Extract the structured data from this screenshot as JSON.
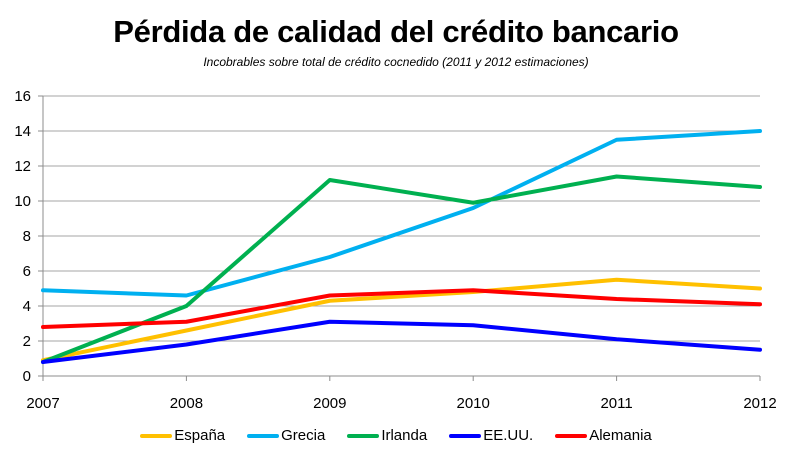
{
  "chart_data": {
    "type": "line",
    "title": "Pérdida de calidad del crédito bancario",
    "subtitle": "Incobrables sobre total de crédito cocnedido (2011 y 2012 estimaciones)",
    "xlabel": "",
    "ylabel": "",
    "x": [
      "2007",
      "2008",
      "2009",
      "2010",
      "2011",
      "2012"
    ],
    "ylim": [
      0,
      16
    ],
    "yticks": [
      0,
      2,
      4,
      6,
      8,
      10,
      12,
      14,
      16
    ],
    "grid": true,
    "legend_position": "bottom",
    "series": [
      {
        "name": "España",
        "color": "#FFC000",
        "values": [
          0.9,
          2.6,
          4.3,
          4.8,
          5.5,
          5.0
        ]
      },
      {
        "name": "Grecia",
        "color": "#00B0F0",
        "values": [
          4.9,
          4.6,
          6.8,
          9.6,
          13.5,
          14.0
        ]
      },
      {
        "name": "Irlanda",
        "color": "#00B050",
        "values": [
          0.8,
          4.0,
          11.2,
          9.9,
          11.4,
          10.8
        ]
      },
      {
        "name": "EE.UU.",
        "color": "#0000FF",
        "values": [
          0.8,
          1.8,
          3.1,
          2.9,
          2.1,
          1.5
        ]
      },
      {
        "name": "Alemania",
        "color": "#FF0000",
        "values": [
          2.8,
          3.1,
          4.6,
          4.9,
          4.4,
          4.1
        ]
      }
    ]
  }
}
